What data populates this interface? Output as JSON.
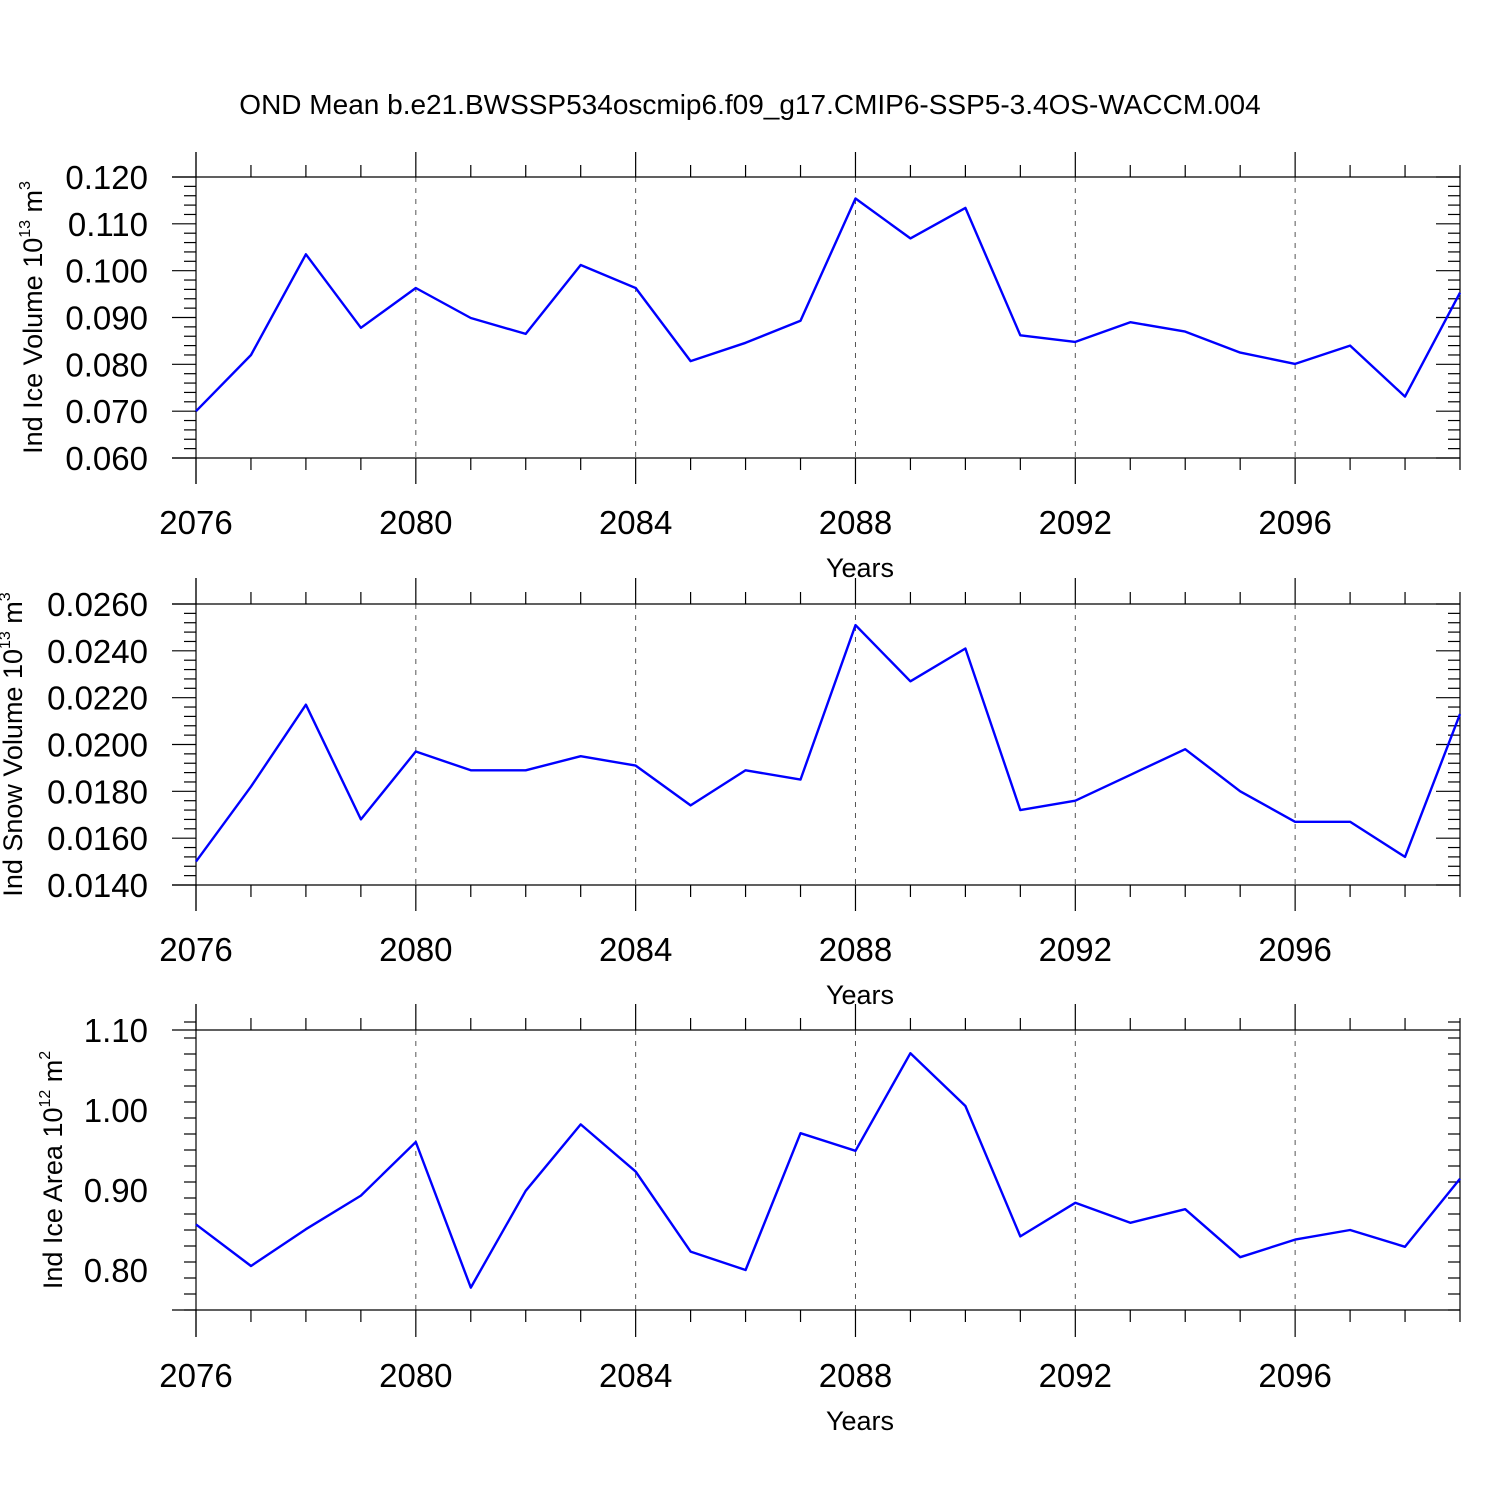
{
  "title": "OND Mean b.e21.BWSSP534oscmip6.f09_g17.CMIP6-SSP5-3.4OS-WACCM.004",
  "colors": {
    "series": "#0000ff",
    "axes": "#000000",
    "grid": "#555555"
  },
  "chart_data": [
    {
      "type": "line",
      "ylabel": "Ind Ice Volume 10",
      "ylabel_exp": "13",
      "ylabel_unit": " m",
      "ylabel_unit_exp": "3",
      "xlabel": "Years",
      "xlim": [
        2076,
        2099
      ],
      "ylim": [
        0.06,
        0.12
      ],
      "xticks": [
        2076,
        2080,
        2084,
        2088,
        2092,
        2096
      ],
      "xtick_labels": [
        "2076",
        "2080",
        "2084",
        "2088",
        "2092",
        "2096"
      ],
      "yticks": [
        0.06,
        0.07,
        0.08,
        0.09,
        0.1,
        0.11,
        0.12
      ],
      "ytick_labels": [
        "0.060",
        "0.070",
        "0.080",
        "0.090",
        "0.100",
        "0.110",
        "0.120"
      ],
      "yminor": 0.002,
      "x": [
        2076,
        2077,
        2078,
        2079,
        2080,
        2081,
        2082,
        2083,
        2084,
        2085,
        2086,
        2087,
        2088,
        2089,
        2090,
        2091,
        2092,
        2093,
        2094,
        2095,
        2096,
        2097,
        2098,
        2099
      ],
      "values": [
        0.07,
        0.082,
        0.1035,
        0.0878,
        0.0963,
        0.0899,
        0.0865,
        0.1012,
        0.0963,
        0.0807,
        0.0846,
        0.0893,
        0.1154,
        0.1069,
        0.1134,
        0.0862,
        0.0848,
        0.089,
        0.087,
        0.0825,
        0.0801,
        0.084,
        0.0731,
        0.0953
      ]
    },
    {
      "type": "line",
      "ylabel": "Ind Snow Volume 10",
      "ylabel_exp": "13",
      "ylabel_unit": " m",
      "ylabel_unit_exp": "3",
      "xlabel": "Years",
      "xlim": [
        2076,
        2099
      ],
      "ylim": [
        0.014,
        0.026
      ],
      "xticks": [
        2076,
        2080,
        2084,
        2088,
        2092,
        2096
      ],
      "xtick_labels": [
        "2076",
        "2080",
        "2084",
        "2088",
        "2092",
        "2096"
      ],
      "yticks": [
        0.014,
        0.016,
        0.018,
        0.02,
        0.022,
        0.024,
        0.026
      ],
      "ytick_labels": [
        "0.0140",
        "0.0160",
        "0.0180",
        "0.0200",
        "0.0220",
        "0.0240",
        "0.0260"
      ],
      "yminor": 0.0004,
      "x": [
        2076,
        2077,
        2078,
        2079,
        2080,
        2081,
        2082,
        2083,
        2084,
        2085,
        2086,
        2087,
        2088,
        2089,
        2090,
        2091,
        2092,
        2093,
        2094,
        2095,
        2096,
        2097,
        2098,
        2099
      ],
      "values": [
        0.015,
        0.0182,
        0.0217,
        0.0168,
        0.0197,
        0.0189,
        0.0189,
        0.0195,
        0.0191,
        0.0174,
        0.0189,
        0.0185,
        0.0251,
        0.0227,
        0.0241,
        0.0172,
        0.0176,
        0.0187,
        0.0198,
        0.018,
        0.0167,
        0.0167,
        0.0152,
        0.0213
      ]
    },
    {
      "type": "line",
      "ylabel": "Ind Ice Area 10",
      "ylabel_exp": "12",
      "ylabel_unit": " m",
      "ylabel_unit_exp": "2",
      "xlabel": "Years",
      "xlim": [
        2076,
        2099
      ],
      "ylim": [
        0.75,
        1.1
      ],
      "xticks": [
        2076,
        2080,
        2084,
        2088,
        2092,
        2096
      ],
      "xtick_labels": [
        "2076",
        "2080",
        "2084",
        "2088",
        "2092",
        "2096"
      ],
      "yticks": [
        0.8,
        0.9,
        1.0,
        1.1
      ],
      "ytick_labels": [
        "0.80",
        "0.90",
        "1.00",
        "1.10"
      ],
      "yminor": 0.02,
      "x": [
        2076,
        2077,
        2078,
        2079,
        2080,
        2081,
        2082,
        2083,
        2084,
        2085,
        2086,
        2087,
        2088,
        2089,
        2090,
        2091,
        2092,
        2093,
        2094,
        2095,
        2096,
        2097,
        2098,
        2099
      ],
      "values": [
        0.857,
        0.805,
        0.851,
        0.893,
        0.96,
        0.778,
        0.899,
        0.982,
        0.923,
        0.823,
        0.8,
        0.971,
        0.949,
        1.071,
        1.005,
        0.842,
        0.884,
        0.859,
        0.876,
        0.816,
        0.838,
        0.85,
        0.829,
        0.914
      ]
    }
  ]
}
